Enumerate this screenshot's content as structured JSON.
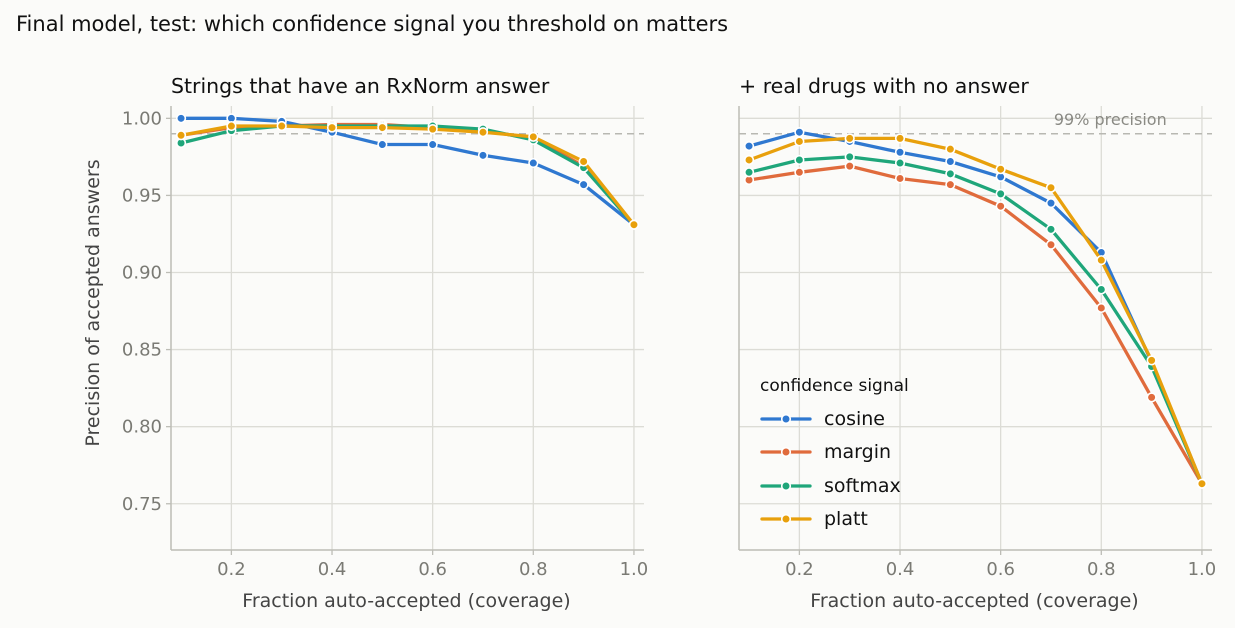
{
  "suptitle": "Final model, test: which confidence signal you threshold on matters",
  "ref_label": "99% precision",
  "chart_data": [
    {
      "type": "line",
      "title": "Strings that have an RxNorm answer",
      "xlabel": "Fraction auto-accepted (coverage)",
      "ylabel": "Precision of accepted answers",
      "x": [
        0.1,
        0.2,
        0.3,
        0.4,
        0.5,
        0.6,
        0.7,
        0.8,
        0.9,
        1.0
      ],
      "xlim": [
        0.08,
        1.02
      ],
      "ylim": [
        0.72,
        1.008
      ],
      "xticks": [
        "0.2",
        "0.4",
        "0.6",
        "0.8",
        "1.0"
      ],
      "yticks": [
        "1.00",
        "0.95",
        "0.90",
        "0.85",
        "0.80",
        "0.75"
      ],
      "reference_line": 0.99,
      "grid": true,
      "series": [
        {
          "name": "cosine",
          "color": "#2f78d0",
          "values": [
            1.0,
            1.0,
            0.998,
            0.991,
            0.983,
            0.983,
            0.976,
            0.971,
            0.957,
            0.931
          ]
        },
        {
          "name": "margin",
          "color": "#e06b3c",
          "values": [
            0.989,
            0.994,
            0.995,
            0.996,
            0.996,
            0.994,
            0.992,
            0.987,
            0.969,
            0.931
          ]
        },
        {
          "name": "softmax",
          "color": "#1fa67a",
          "values": [
            0.984,
            0.992,
            0.995,
            0.995,
            0.995,
            0.995,
            0.993,
            0.986,
            0.968,
            0.931
          ]
        },
        {
          "name": "platt",
          "color": "#e8a00c",
          "values": [
            0.989,
            0.995,
            0.995,
            0.994,
            0.994,
            0.993,
            0.991,
            0.988,
            0.972,
            0.931
          ]
        }
      ]
    },
    {
      "type": "line",
      "title": "+ real drugs with no answer",
      "xlabel": "Fraction auto-accepted (coverage)",
      "ylabel": "",
      "x": [
        0.1,
        0.2,
        0.3,
        0.4,
        0.5,
        0.6,
        0.7,
        0.8,
        0.9,
        1.0
      ],
      "xlim": [
        0.08,
        1.02
      ],
      "ylim": [
        0.72,
        1.008
      ],
      "xticks": [
        "0.2",
        "0.4",
        "0.6",
        "0.8",
        "1.0"
      ],
      "yticks": [],
      "reference_line": 0.99,
      "grid": true,
      "series": [
        {
          "name": "cosine",
          "color": "#2f78d0",
          "values": [
            0.982,
            0.991,
            0.985,
            0.978,
            0.972,
            0.962,
            0.945,
            0.913,
            0.842,
            0.763
          ]
        },
        {
          "name": "margin",
          "color": "#e06b3c",
          "values": [
            0.96,
            0.965,
            0.969,
            0.961,
            0.957,
            0.943,
            0.918,
            0.877,
            0.819,
            0.763
          ]
        },
        {
          "name": "softmax",
          "color": "#1fa67a",
          "values": [
            0.965,
            0.973,
            0.975,
            0.971,
            0.964,
            0.951,
            0.928,
            0.889,
            0.839,
            0.763
          ]
        },
        {
          "name": "platt",
          "color": "#e8a00c",
          "values": [
            0.973,
            0.985,
            0.987,
            0.987,
            0.98,
            0.967,
            0.955,
            0.908,
            0.843,
            0.763
          ]
        }
      ]
    }
  ],
  "legend": {
    "title": "confidence signal",
    "items": [
      "cosine",
      "margin",
      "softmax",
      "platt"
    ]
  }
}
